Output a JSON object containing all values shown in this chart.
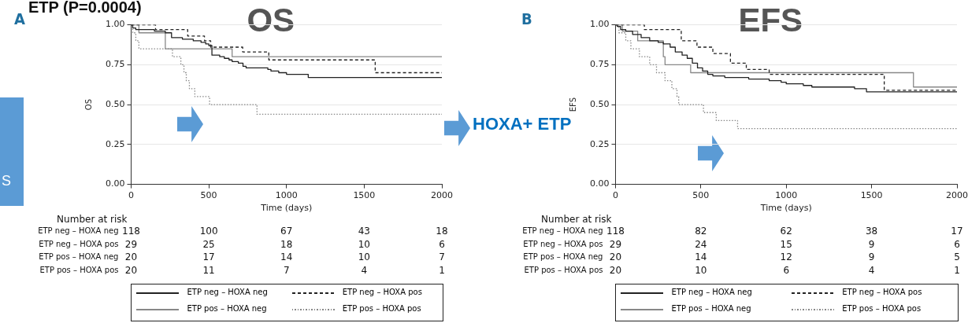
{
  "chart_data": [
    {
      "type": "step",
      "title": "OS",
      "xlabel": "Time (days)",
      "ylabel": "OS",
      "xlim": [
        0,
        2000
      ],
      "xticks": [
        0,
        500,
        1000,
        1500,
        2000
      ],
      "ylim": [
        0,
        1
      ],
      "yticks": [
        {
          "value": 0,
          "label": "0.00"
        },
        {
          "value": 0.25,
          "label": "0.25"
        },
        {
          "value": 0.5,
          "label": "0.50"
        },
        {
          "value": 0.75,
          "label": "0.75"
        },
        {
          "value": 1,
          "label": "1.00"
        }
      ],
      "grid": "y",
      "legend": "bottom",
      "marker": "none",
      "annotations": [
        "A",
        "Number at risk",
        "ETP neg – HOXA neg",
        "118 100 67 43 18",
        "ETP neg – HOXA pos",
        "29 25 18 10 6",
        "ETP pos – HOXA neg",
        "20 17 14 10 7",
        "ETP pos – HOXA pos",
        "20 11 7 4 1",
        "HOXA+ ETP",
        "ETP (P=0.0004)",
        "S"
      ],
      "series": [
        {
          "name": "ETP neg – HOXA neg",
          "color": "#222222",
          "line_style": "solid",
          "x": [
            0,
            10,
            30,
            150,
            220,
            260,
            330,
            400,
            450,
            480,
            500,
            520,
            570,
            600,
            630,
            650,
            690,
            720,
            740,
            880,
            900,
            950,
            1000,
            1140,
            2000
          ],
          "values": [
            1,
            0.98,
            0.97,
            0.96,
            0.95,
            0.92,
            0.91,
            0.9,
            0.89,
            0.88,
            0.87,
            0.81,
            0.8,
            0.79,
            0.78,
            0.77,
            0.76,
            0.74,
            0.73,
            0.72,
            0.71,
            0.7,
            0.69,
            0.67,
            0.67
          ]
        },
        {
          "name": "ETP neg – HOXA pos",
          "color": "#222222",
          "line_style": "dashed",
          "x": [
            0,
            157,
            364,
            472,
            512,
            718,
            886,
            1571,
            2000
          ],
          "values": [
            1,
            0.97,
            0.93,
            0.9,
            0.86,
            0.83,
            0.78,
            0.7,
            0.7
          ]
        },
        {
          "name": "ETP pos – HOXA neg",
          "color": "#888888",
          "line_style": "solid",
          "x": [
            0,
            50,
            220,
            650,
            2000
          ],
          "values": [
            1,
            0.95,
            0.85,
            0.8,
            0.8
          ]
        },
        {
          "name": "ETP pos – HOXA pos",
          "color": "#888888",
          "line_style": "dotted",
          "x": [
            0,
            10,
            30,
            50,
            266,
            320,
            340,
            355,
            375,
            410,
            505,
            810,
            2000
          ],
          "values": [
            1,
            0.95,
            0.9,
            0.85,
            0.8,
            0.75,
            0.7,
            0.65,
            0.6,
            0.55,
            0.5,
            0.44,
            0.44
          ]
        }
      ]
    },
    {
      "type": "step",
      "title": "EFS",
      "xlabel": "Time (days)",
      "ylabel": "EFS",
      "xlim": [
        0,
        2000
      ],
      "xticks": [
        0,
        500,
        1000,
        1500,
        2000
      ],
      "ylim": [
        0,
        1
      ],
      "yticks": [
        {
          "value": 0,
          "label": "0.00"
        },
        {
          "value": 0.25,
          "label": "0.25"
        },
        {
          "value": 0.5,
          "label": "0.50"
        },
        {
          "value": 0.75,
          "label": "0.75"
        },
        {
          "value": 1,
          "label": "1.00"
        }
      ],
      "grid": "y",
      "legend": "bottom",
      "marker": "none",
      "annotations": [
        "B",
        "Number at risk",
        "ETP neg – HOXA neg",
        "118 82 62 38 17",
        "ETP neg – HOXA pos",
        "29 24 15 9 6",
        "ETP pos – HOXA neg",
        "20 14 12 9 5",
        "ETP pos – HOXA pos",
        "20 10 6 4 1"
      ],
      "series": [
        {
          "name": "ETP neg – HOXA neg",
          "color": "#222222",
          "line_style": "solid",
          "x": [
            0,
            10,
            30,
            60,
            100,
            150,
            200,
            250,
            280,
            320,
            350,
            390,
            420,
            450,
            480,
            510,
            540,
            570,
            640,
            780,
            900,
            970,
            1000,
            1100,
            1150,
            1400,
            1470,
            2000
          ],
          "values": [
            1,
            0.99,
            0.97,
            0.96,
            0.94,
            0.92,
            0.9,
            0.89,
            0.88,
            0.86,
            0.83,
            0.81,
            0.79,
            0.76,
            0.73,
            0.71,
            0.69,
            0.68,
            0.67,
            0.66,
            0.65,
            0.64,
            0.63,
            0.62,
            0.61,
            0.6,
            0.58,
            0.58
          ]
        },
        {
          "name": "ETP neg – HOXA pos",
          "color": "#222222",
          "line_style": "dashed",
          "x": [
            0,
            169,
            385,
            477,
            570,
            673,
            766,
            900,
            1574,
            2000
          ],
          "values": [
            1,
            0.97,
            0.9,
            0.86,
            0.82,
            0.76,
            0.72,
            0.69,
            0.59,
            0.59
          ]
        },
        {
          "name": "ETP pos – HOXA neg",
          "color": "#888888",
          "line_style": "solid",
          "x": [
            0,
            40,
            130,
            280,
            290,
            440,
            1745,
            2000
          ],
          "values": [
            1,
            0.96,
            0.9,
            0.8,
            0.75,
            0.7,
            0.61,
            0.61
          ]
        },
        {
          "name": "ETP pos – HOXA pos",
          "color": "#888888",
          "line_style": "dotted",
          "x": [
            0,
            20,
            60,
            90,
            140,
            200,
            240,
            290,
            330,
            360,
            370,
            515,
            590,
            715,
            2000
          ],
          "values": [
            1,
            0.95,
            0.9,
            0.85,
            0.8,
            0.75,
            0.7,
            0.65,
            0.6,
            0.55,
            0.5,
            0.45,
            0.4,
            0.35,
            0.35
          ]
        }
      ]
    }
  ]
}
